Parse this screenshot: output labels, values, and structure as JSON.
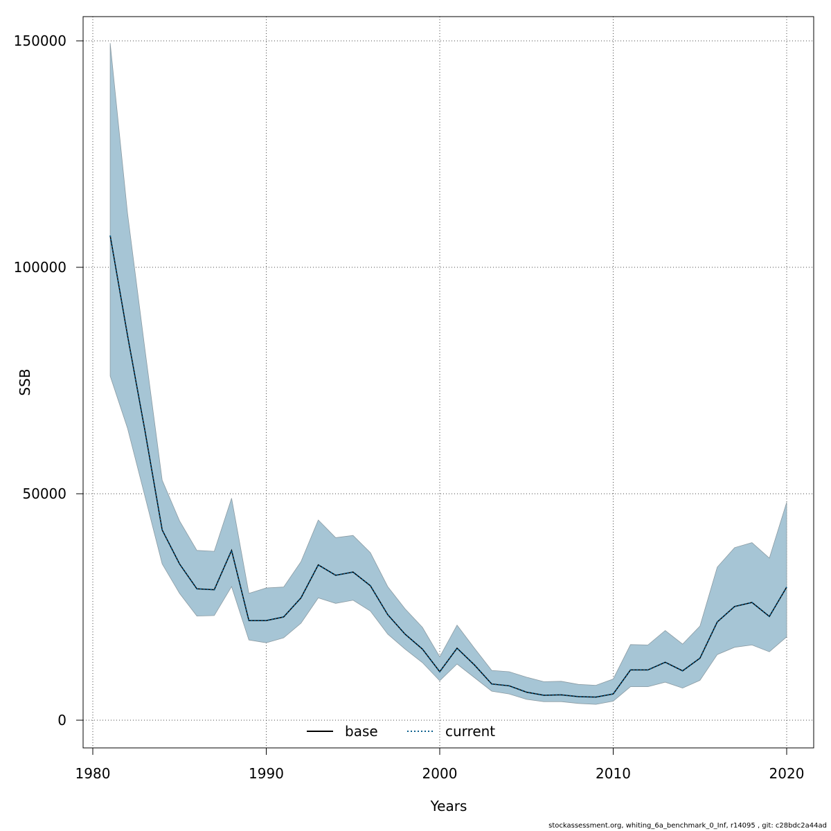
{
  "chart_data": {
    "type": "area",
    "xlabel": "Years",
    "ylabel": "SSB",
    "xlim": [
      1980,
      2021
    ],
    "ylim": [
      0,
      155000
    ],
    "x_ticks": [
      1980,
      1990,
      2000,
      2010,
      2020
    ],
    "y_ticks": [
      0,
      50000,
      100000,
      150000
    ],
    "x_tick_labels": [
      "1980",
      "1990",
      "2000",
      "2010",
      "2020"
    ],
    "y_tick_labels": [
      "0",
      "50000",
      "100000",
      "150000"
    ],
    "grid": true,
    "legend_position": "bottom",
    "band_color": "#a6c5d5",
    "band_edge_color": "#8a9aa2",
    "x": [
      1981,
      1982,
      1983,
      1984,
      1985,
      1986,
      1987,
      1988,
      1989,
      1990,
      1991,
      1992,
      1993,
      1994,
      1995,
      1996,
      1997,
      1998,
      1999,
      2000,
      2001,
      2002,
      2003,
      2004,
      2005,
      2006,
      2007,
      2008,
      2009,
      2010,
      2011,
      2012,
      2013,
      2014,
      2015,
      2016,
      2017,
      2018,
      2019,
      2020
    ],
    "band": {
      "upper": [
        149500,
        112000,
        82000,
        53000,
        44000,
        37500,
        37300,
        49000,
        28000,
        29200,
        29400,
        35000,
        44200,
        40300,
        40800,
        37000,
        29500,
        24600,
        20500,
        14000,
        21000,
        15900,
        11000,
        10700,
        9500,
        8500,
        8600,
        7900,
        7700,
        9100,
        16700,
        16600,
        19800,
        16800,
        20800,
        33800,
        38100,
        39200,
        35800,
        48100
      ],
      "lower": [
        76000,
        64500,
        49500,
        34500,
        28000,
        23000,
        23100,
        29500,
        17700,
        17100,
        18200,
        21400,
        27000,
        25800,
        26500,
        24100,
        19000,
        15700,
        12700,
        8700,
        12400,
        9400,
        6400,
        5800,
        4600,
        4100,
        4100,
        3700,
        3500,
        4200,
        7400,
        7400,
        8400,
        7100,
        8800,
        14500,
        16100,
        16600,
        15100,
        18400
      ]
    },
    "series": [
      {
        "name": "base",
        "values": [
          107000,
          85000,
          64000,
          42000,
          34500,
          29000,
          28800,
          37500,
          22000,
          22000,
          22800,
          27000,
          34300,
          32000,
          32700,
          29700,
          23300,
          19000,
          15700,
          10700,
          15900,
          12200,
          8000,
          7600,
          6200,
          5500,
          5600,
          5200,
          5100,
          5800,
          11100,
          11100,
          12800,
          10900,
          13700,
          21700,
          25100,
          26000,
          22900,
          29400
        ],
        "color": "#000000",
        "line_style": "solid"
      },
      {
        "name": "current",
        "values": [
          107000,
          85000,
          64000,
          42000,
          34500,
          29000,
          28800,
          37500,
          22000,
          22000,
          22800,
          27000,
          34300,
          32000,
          32700,
          29700,
          23300,
          19000,
          15700,
          10700,
          15900,
          12200,
          8000,
          7600,
          6200,
          5500,
          5600,
          5200,
          5100,
          5800,
          11100,
          11100,
          12800,
          10900,
          13700,
          21700,
          25100,
          26000,
          22900,
          29400
        ],
        "color": "#0b5e8c",
        "line_style": "dotted"
      }
    ]
  },
  "footer": "stockassessment.org, whiting_6a_benchmark_0_Inf, r14095 , git: c28bdc2a44ad"
}
